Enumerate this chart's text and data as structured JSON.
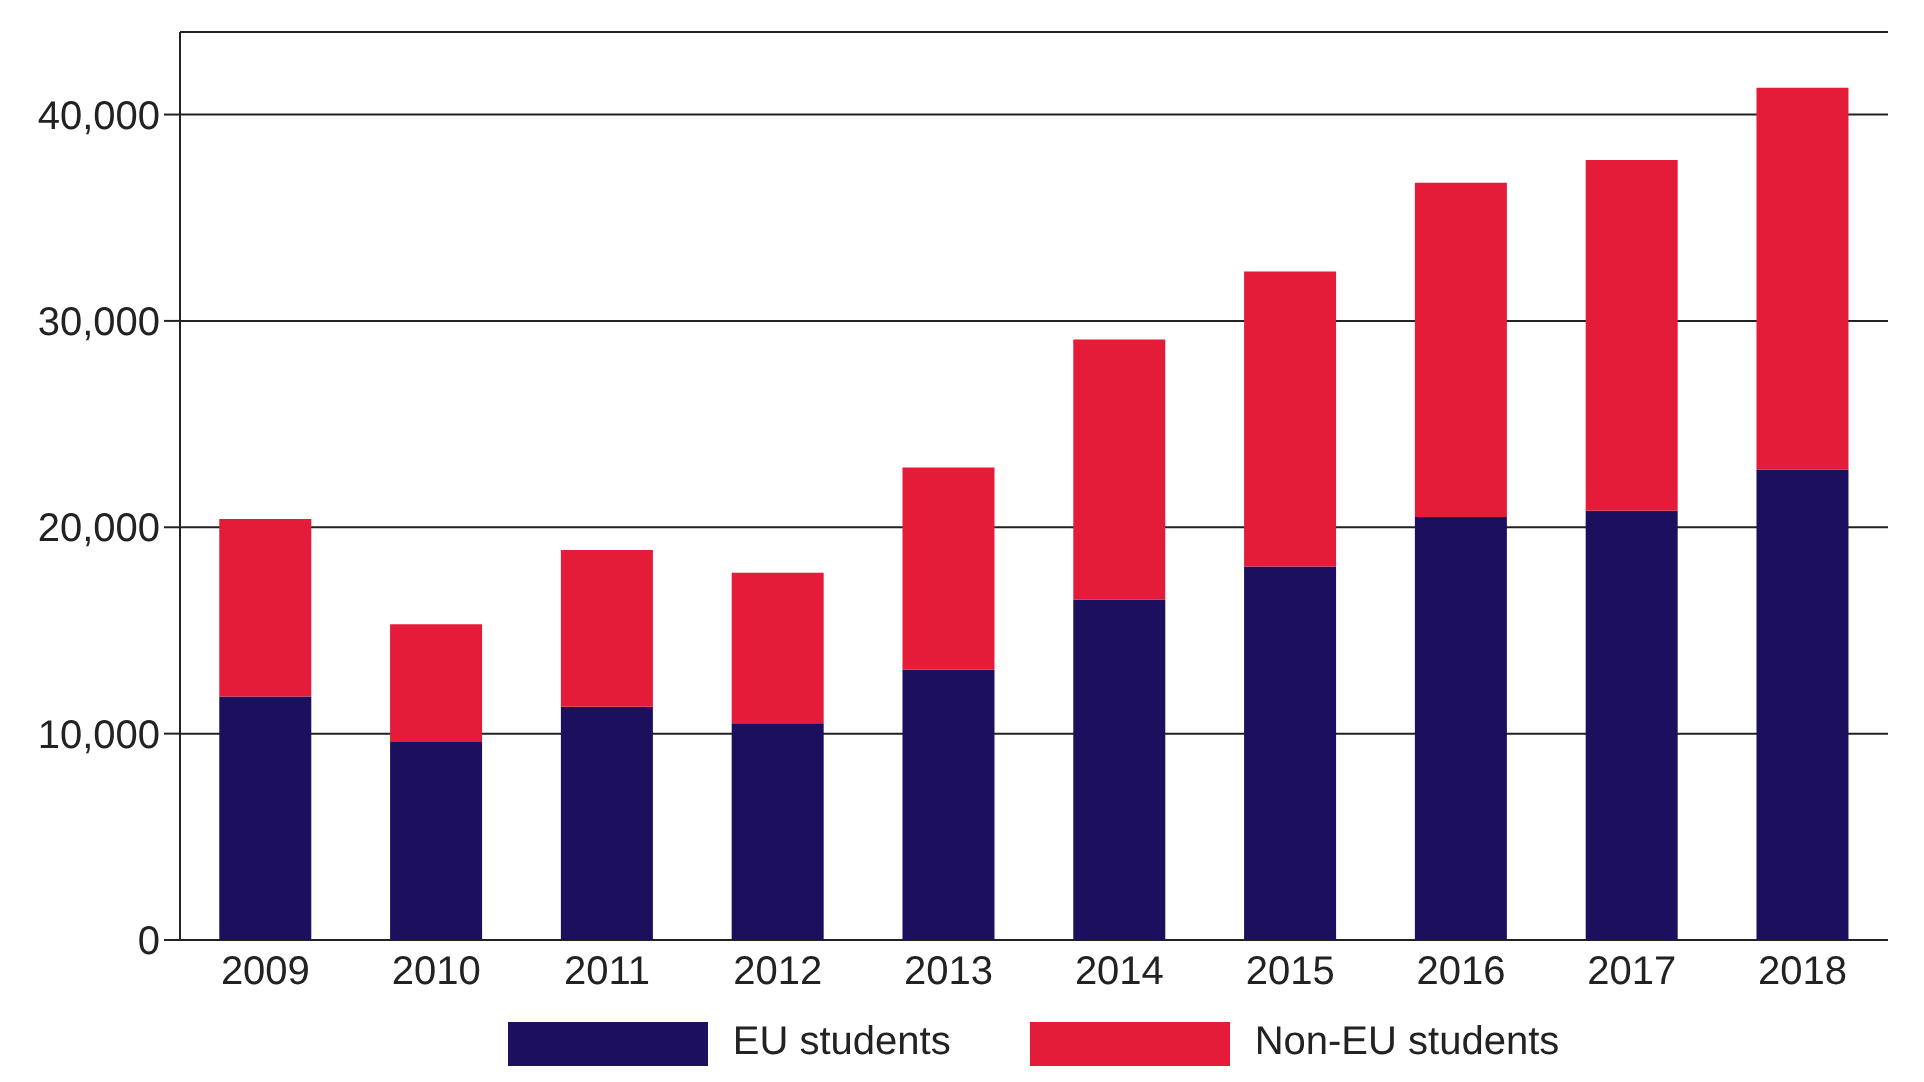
{
  "chart_data": {
    "type": "bar",
    "stacked": true,
    "categories": [
      "2009",
      "2010",
      "2011",
      "2012",
      "2013",
      "2014",
      "2015",
      "2016",
      "2017",
      "2018"
    ],
    "series": [
      {
        "name": "EU students",
        "color": "#1b0f5e",
        "values": [
          11800,
          9600,
          11300,
          10500,
          13100,
          16500,
          18100,
          20500,
          20800,
          22800
        ]
      },
      {
        "name": "Non-EU students",
        "color": "#e41b39",
        "values": [
          8600,
          5700,
          7600,
          7300,
          9800,
          12600,
          14300,
          16200,
          17000,
          18500
        ]
      }
    ],
    "ylim": [
      0,
      44000
    ],
    "yticks": [
      0,
      {
        "value": 10000,
        "label": "10,000"
      },
      {
        "value": 20000,
        "label": "20,000"
      },
      {
        "value": 30000,
        "label": "30,000"
      },
      {
        "value": 40000,
        "label": "40,000"
      }
    ],
    "grid": "y",
    "legend": "bottom"
  }
}
